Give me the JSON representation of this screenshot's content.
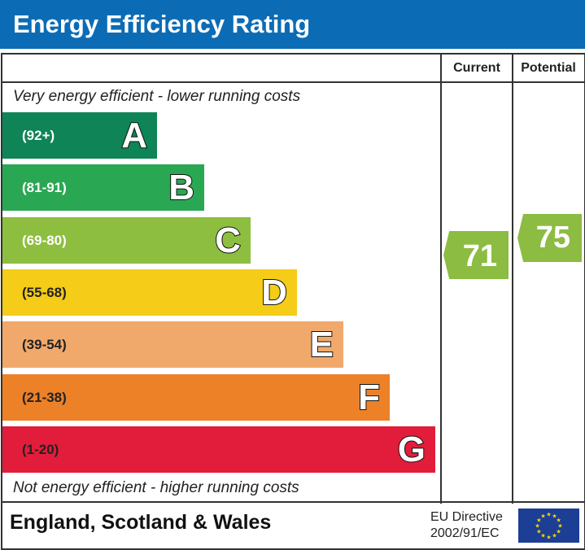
{
  "header": {
    "title": "Energy Efficiency Rating"
  },
  "columns": {
    "current": "Current",
    "potential": "Potential"
  },
  "chart_data": {
    "type": "bar",
    "title": "Energy Efficiency Rating",
    "top_note": "Very energy efficient - lower running costs",
    "bottom_note": "Not energy efficient - higher running costs",
    "bands": [
      {
        "letter": "A",
        "range": "(92+)",
        "color": "#0f8457"
      },
      {
        "letter": "B",
        "range": "(81-91)",
        "color": "#2aa753"
      },
      {
        "letter": "C",
        "range": "(69-80)",
        "color": "#8dbe3f"
      },
      {
        "letter": "D",
        "range": "(55-68)",
        "color": "#f5cc17"
      },
      {
        "letter": "E",
        "range": "(39-54)",
        "color": "#f1a96b"
      },
      {
        "letter": "F",
        "range": "(21-38)",
        "color": "#ec8128"
      },
      {
        "letter": "G",
        "range": "(1-20)",
        "color": "#e21d3b"
      }
    ],
    "current": {
      "value": "71",
      "band": "C",
      "color": "#8cbc41"
    },
    "potential": {
      "value": "75",
      "band": "C",
      "color": "#8cbc41"
    }
  },
  "footer": {
    "region": "England, Scotland & Wales",
    "directive_line1": "EU Directive",
    "directive_line2": "2002/91/EC"
  }
}
